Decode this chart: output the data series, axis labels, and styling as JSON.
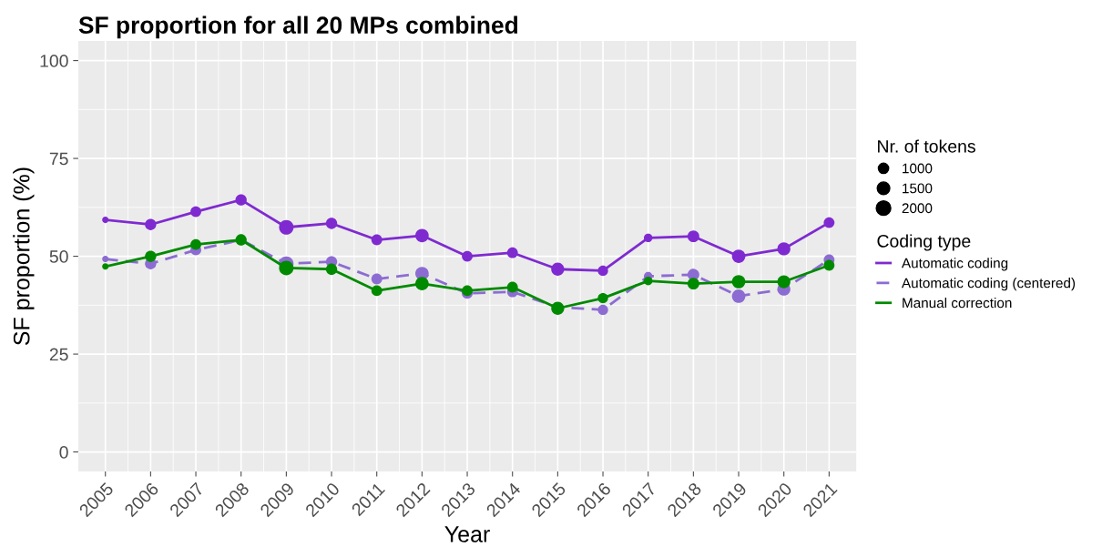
{
  "chart_data": {
    "type": "line",
    "title": "SF proportion for all 20 MPs combined",
    "xlabel": "Year",
    "ylabel": "SF proportion (%)",
    "categories": [
      "2005",
      "2006",
      "2007",
      "2008",
      "2009",
      "2010",
      "2011",
      "2012",
      "2013",
      "2014",
      "2015",
      "2016",
      "2017",
      "2018",
      "2019",
      "2020",
      "2021"
    ],
    "series": [
      {
        "name": "Automatic coding",
        "color": "#7f2ad0",
        "line_style": "solid",
        "values": [
          59.3,
          58.1,
          61.4,
          64.4,
          57.4,
          58.4,
          54.2,
          55.3,
          50.0,
          50.9,
          46.7,
          46.3,
          54.7,
          55.1,
          50.0,
          51.9,
          58.6
        ]
      },
      {
        "name": "Automatic coding (centered)",
        "color": "#8c6cd2",
        "line_style": "dashed",
        "values": [
          49.3,
          48.1,
          51.6,
          54.2,
          48.1,
          48.6,
          44.2,
          45.6,
          40.5,
          40.9,
          37.0,
          36.3,
          44.9,
          45.3,
          39.8,
          41.6,
          49.1
        ]
      },
      {
        "name": "Manual correction",
        "color": "#008a00",
        "line_style": "solid",
        "values": [
          47.4,
          50.0,
          53.0,
          54.2,
          47.0,
          46.7,
          41.2,
          43.0,
          41.2,
          42.1,
          36.7,
          39.3,
          43.7,
          43.0,
          43.5,
          43.5,
          47.7
        ]
      },
      {
        "type": "bubble",
        "marker": "circle",
        "color": "#7f2ad0",
        "values": [
          59.3,
          58.1,
          61.4,
          64.4,
          57.4,
          58.4,
          54.2,
          55.3,
          50.0,
          50.9,
          46.7,
          46.3,
          54.7,
          55.1,
          50.0,
          51.9,
          58.6
        ],
        "sizes": [
          400,
          1200,
          1100,
          1200,
          2000,
          1200,
          1100,
          1700,
          1100,
          1100,
          1600,
          1000,
          700,
          1300,
          1700,
          1600,
          1100
        ]
      },
      {
        "type": "bubble",
        "marker": "circle",
        "color": "#8c6cd2",
        "values": [
          49.3,
          48.1,
          51.6,
          null,
          48.1,
          48.6,
          44.2,
          45.6,
          40.5,
          40.9,
          null,
          36.3,
          44.9,
          45.3,
          39.8,
          41.6,
          49.1
        ],
        "sizes": [
          400,
          1200,
          1100,
          null,
          2000,
          1200,
          1100,
          1700,
          1100,
          1100,
          null,
          1000,
          700,
          1300,
          1700,
          1600,
          1100
        ]
      },
      {
        "type": "bubble",
        "marker": "circle",
        "color": "#008a00",
        "values": [
          47.4,
          50.0,
          53.0,
          54.2,
          47.0,
          46.7,
          41.2,
          43.0,
          41.2,
          42.1,
          36.7,
          39.3,
          43.7,
          43.0,
          43.5,
          43.5,
          47.7
        ],
        "sizes": [
          400,
          1200,
          1100,
          1200,
          2000,
          1200,
          1100,
          1700,
          1100,
          1100,
          1600,
          1000,
          700,
          1300,
          1700,
          1600,
          1100
        ]
      }
    ],
    "size_legend": [
      1000,
      1500,
      2000
    ],
    "annotations": [
      "Nr. of tokens"
    ],
    "legend_title": "Coding type",
    "ylim": [
      -5,
      105
    ],
    "yticks": [
      0,
      25,
      50,
      75,
      100
    ],
    "grid": true,
    "legend": "right"
  }
}
